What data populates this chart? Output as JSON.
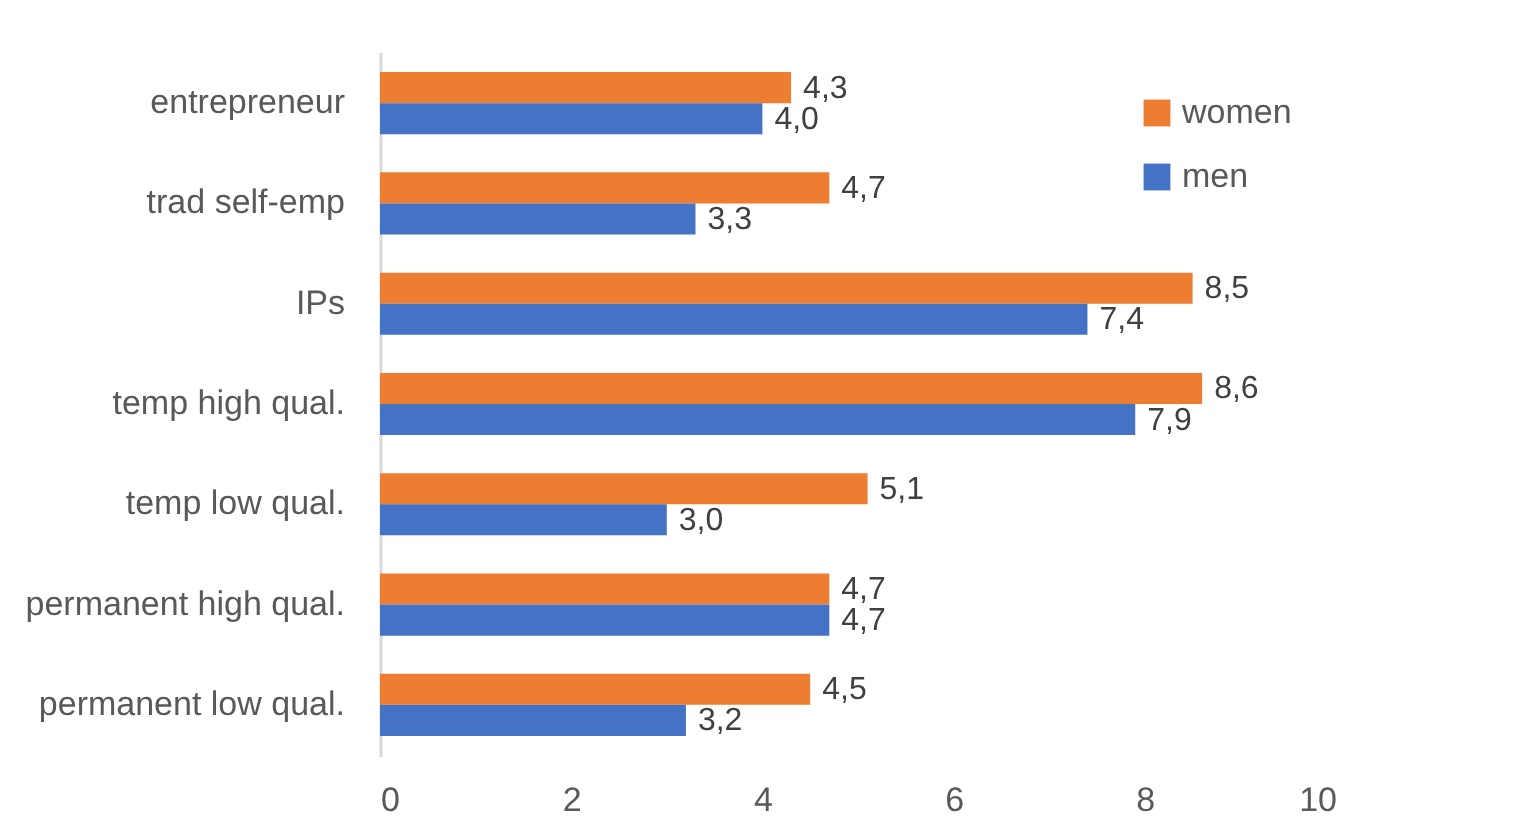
{
  "chart_data": {
    "type": "bar",
    "orientation": "horizontal",
    "categories": [
      "entrepreneur",
      "trad self-emp",
      "IPs",
      "temp high qual.",
      "temp low qual.",
      "permanent high qual.",
      "permanent low qual."
    ],
    "series": [
      {
        "name": "women",
        "color": "#ed7d31",
        "values": [
          4.3,
          4.7,
          8.5,
          8.6,
          5.1,
          4.7,
          4.5
        ],
        "value_labels": [
          "4,3",
          "4,7",
          "8,5",
          "8,6",
          "5,1",
          "4,7",
          "4,5"
        ]
      },
      {
        "name": "men",
        "color": "#4472c4",
        "values": [
          4.0,
          3.3,
          7.4,
          7.9,
          3.0,
          4.7,
          3.2
        ],
        "value_labels": [
          "4,0",
          "3,3",
          "7,4",
          "7,9",
          "3,0",
          "4,7",
          "3,2"
        ]
      }
    ],
    "xlim": [
      0,
      10
    ],
    "xticks": [
      0,
      2,
      4,
      6,
      8,
      10
    ],
    "grid": false,
    "legend": "top right"
  }
}
